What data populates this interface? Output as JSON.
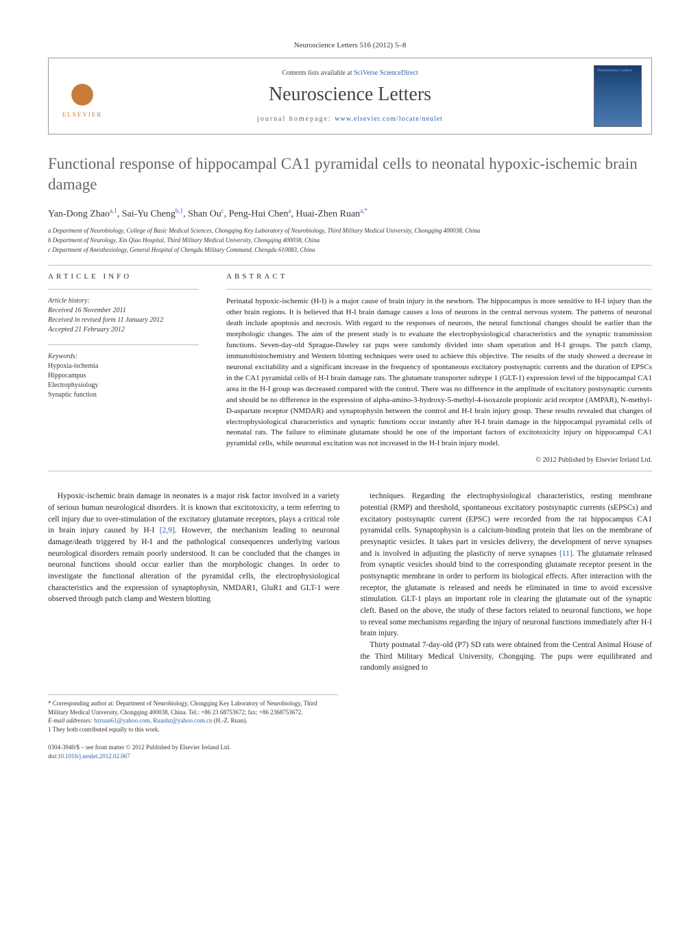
{
  "journal_ref": "Neuroscience Letters 516 (2012) 5–8",
  "header": {
    "contents_prefix": "Contents lists available at ",
    "contents_link": "SciVerse ScienceDirect",
    "journal_name": "Neuroscience Letters",
    "homepage_prefix": "journal homepage: ",
    "homepage_url": "www.elsevier.com/locate/neulet",
    "publisher_label": "ELSEVIER",
    "cover_label": "Neuroscience Letters"
  },
  "title": "Functional response of hippocampal CA1 pyramidal cells to neonatal hypoxic-ischemic brain damage",
  "authors_html": "Yan-Dong Zhao<sup>a,1</sup>, Sai-Yu Cheng<sup>b,1</sup>, Shan Ou<sup>c</sup>, Peng-Hui Chen<sup>a</sup>, Huai-Zhen Ruan<sup>a,*</sup>",
  "affiliations": [
    "a Department of Neurobiology, College of Basic Medical Sciences, Chongqing Key Laboratory of Neurobiology, Third Military Medical University, Chongqing 400038, China",
    "b Department of Neurology, Xin Qiao Hospital, Third Military Medical University, Chongqing 400038, China",
    "c Department of Anesthesiology, General Hospital of Chengdu Military Command, Chengdu 610083, China"
  ],
  "article_info": {
    "heading": "article info",
    "history_label": "Article history:",
    "received": "Received 16 November 2011",
    "revised": "Received in revised form 11 January 2012",
    "accepted": "Accepted 21 February 2012",
    "keywords_label": "Keywords:",
    "keywords": [
      "Hypoxia-ischemia",
      "Hippocampus",
      "Electrophysiology",
      "Synaptic function"
    ]
  },
  "abstract": {
    "heading": "abstract",
    "text": "Perinatal hypoxic-ischemic (H-I) is a major cause of brain injury in the newborn. The hippocampus is more sensitive to H-I injury than the other brain regions. It is believed that H-I brain damage causes a loss of neurons in the central nervous system. The patterns of neuronal death include apoptosis and necrosis. With regard to the responses of neurons, the neural functional changes should be earlier than the morphologic changes. The aim of the present study is to evaluate the electrophysiological characteristics and the synaptic transmission functions. Seven-day-old Sprague-Dawley rat pups were randomly divided into sham operation and H-I groups. The patch clamp, immunohistochemistry and Western blotting techniques were used to achieve this objective. The results of the study showed a decrease in neuronal excitability and a significant increase in the frequency of spontaneous excitatory postsynaptic currents and the duration of EPSCs in the CA1 pyramidal cells of H-I brain damage rats. The glutamate transporter subtype 1 (GLT-1) expression level of the hippocampal CA1 area in the H-I group was decreased compared with the control. There was no difference in the amplitude of excitatory postsynaptic currents and should be no difference in the expression of alpha-amino-3-hydroxy-5-methyl-4-isoxazole propionic acid receptor (AMPAR), N-methyl-D-aspartate receptor (NMDAR) and synaptophysin between the control and H-I brain injury group. These results revealed that changes of electrophysiological characteristics and synaptic functions occur instantly after H-I brain damage in the hippocampal pyramidal cells of neonatal rats. The failure to eliminate glutamate should be one of the important factors of excitotoxicity injury on hippocampal CA1 pyramidal cells, while neuronal excitation was not increased in the H-I brain injury model.",
    "copyright": "© 2012 Published by Elsevier Ireland Ltd."
  },
  "body": {
    "col1": "Hypoxic-ischemic brain damage in neonates is a major risk factor involved in a variety of serious human neurological disorders. It is known that excitotoxicity, a term referring to cell injury due to over-stimulation of the excitatory glutamate receptors, plays a critical role in brain injury caused by H-I [2,9]. However, the mechanism leading to neuronal damage/death triggered by H-I and the pathological consequences underlying various neurological disorders remain poorly understood. It can be concluded that the changes in neuronal functions should occur earlier than the morphologic changes. In order to investigate the functional alteration of the pyramidal cells, the electrophysiological characteristics and the expression of synaptophysin, NMDAR1, GluR1 and GLT-1 were observed through patch clamp and Western blotting",
    "col2_p1": "techniques. Regarding the electrophysiological characteristics, resting membrane potential (RMP) and threshold, spontaneous excitatory postsynaptic currents (sEPSCs) and excitatory postsynaptic current (EPSC) were recorded from the rat hippocampus CA1 pyramidal cells. Synaptophysin is a calcium-binding protein that lies on the membrane of presynaptic vesicles. It takes part in vesicles delivery, the development of nerve synapses and is involved in adjusting the plasticity of nerve synapses [11]. The glutamate released from synaptic vesicles should bind to the corresponding glutamate receptor present in the postsynaptic membrane in order to perform its biological effects. After interaction with the receptor, the glutamate is released and needs be eliminated in time to avoid excessive stimulation. GLT-1 plays an important role in clearing the glutamate out of the synaptic cleft. Based on the above, the study of these factors related to neuronal functions, we hope to reveal some mechanisms regarding the injury of neuronal functions immediately after H-I brain injury.",
    "col2_p2": "Thirty postnatal 7-day-old (P7) SD rats were obtained from the Central Animal House of the Third Military Medical University, Chongqing. The pups were equilibrated and randomly assigned to",
    "ref_29": "[2,9]",
    "ref_11": "[11]"
  },
  "footnotes": {
    "corr_label": "* Corresponding author at: Department of Neurobiology, Chongqing Key Laboratory of Neurobiology, Third Military Medical University, Chongqing 400038, China. Tel.: +86 23 68753672; fax: +86 2368753672.",
    "email_label": "E-mail addresses: ",
    "email1": "hzruan61@yahoo.com",
    "email_sep": ", ",
    "email2": "Ruanhz@yahoo.com.cn",
    "email_suffix": " (H.-Z. Ruan).",
    "note1": "1 They both contributed equally to this work."
  },
  "footer": {
    "issn": "0304-3940/$ – see front matter © 2012 Published by Elsevier Ireland Ltd.",
    "doi_label": "doi:",
    "doi": "10.1016/j.neulet.2012.02.067"
  }
}
